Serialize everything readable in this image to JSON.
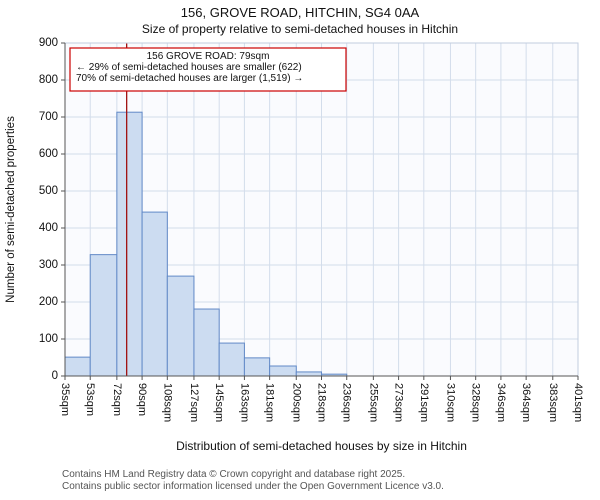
{
  "chart_data": {
    "type": "bar",
    "title": "156, GROVE ROAD, HITCHIN, SG4 0AA",
    "subtitle": "Size of property relative to semi-detached houses in Hitchin",
    "xlabel": "Distribution of semi-detached houses by size in Hitchin",
    "ylabel": "Number of semi-detached properties",
    "ylim": [
      0,
      900
    ],
    "ytick_step": 100,
    "grid": true,
    "categories_sqm": [
      35,
      53,
      72,
      90,
      108,
      127,
      145,
      163,
      181,
      200,
      218,
      236,
      255,
      273,
      291,
      310,
      328,
      346,
      364,
      383,
      401
    ],
    "tick_labels": [
      "35sqm",
      "53sqm",
      "72sqm",
      "90sqm",
      "108sqm",
      "127sqm",
      "145sqm",
      "163sqm",
      "181sqm",
      "200sqm",
      "218sqm",
      "236sqm",
      "255sqm",
      "273sqm",
      "291sqm",
      "310sqm",
      "328sqm",
      "346sqm",
      "364sqm",
      "383sqm",
      "401sqm"
    ],
    "values": [
      51,
      328,
      713,
      443,
      270,
      181,
      89,
      49,
      27,
      11,
      5,
      0,
      0,
      0,
      0,
      0,
      0,
      0,
      0,
      0
    ],
    "marker": {
      "value_sqm": 79,
      "color": "#a01010"
    },
    "annotation": {
      "lines": [
        "156 GROVE ROAD: 79sqm",
        "← 29% of semi-detached houses are smaller (622)",
        "70% of semi-detached houses are larger (1,519) →"
      ],
      "border_color": "#cc0000"
    },
    "bar_fill": "#ccdcf1",
    "bar_stroke": "#6189c7",
    "grid_color": "#d3ddeb",
    "plot_bg": "#fafbfe",
    "axis_color": "#555555"
  },
  "footer": {
    "line1": "Contains HM Land Registry data © Crown copyright and database right 2025.",
    "line2": "Contains public sector information licensed under the Open Government Licence v3.0."
  }
}
